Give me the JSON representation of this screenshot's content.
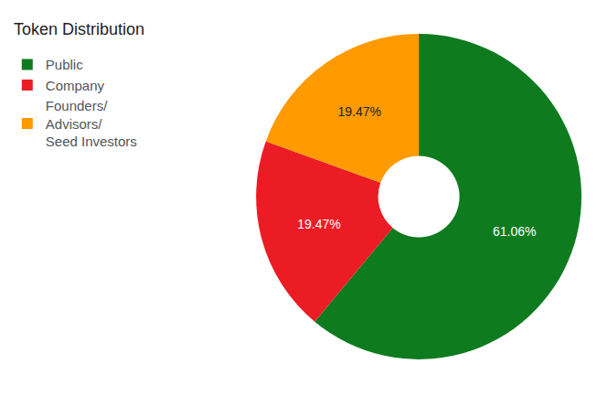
{
  "chart_data": {
    "type": "pie",
    "title": "Token Distribution",
    "categories": [
      "Public",
      "Company",
      "Founders/\nAdvisors/\nSeed Investors"
    ],
    "values": [
      61.06,
      19.47,
      19.47
    ],
    "value_labels": [
      "61.06%",
      "19.47%",
      "19.47%"
    ],
    "colors": [
      "#0e7b1e",
      "#ec1c24",
      "#ff9a00"
    ],
    "data_labels": true,
    "legend": "top left"
  }
}
